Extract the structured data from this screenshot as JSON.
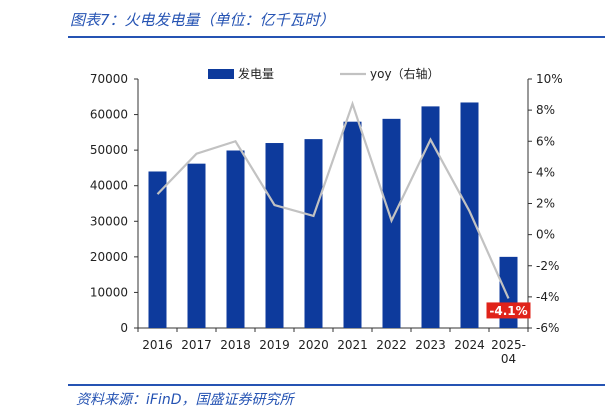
{
  "header": {
    "title": "图表7：火电发电量（单位：亿千瓦时）"
  },
  "footer": {
    "source": "资料来源：iFinD，国盛证券研究所"
  },
  "colors": {
    "bar": "#0d3a9c",
    "line": "#c2c2c2",
    "accent": "#2553b3",
    "callout": "#e0231a"
  },
  "chart_data": {
    "type": "bar",
    "categories": [
      "2016",
      "2017",
      "2018",
      "2019",
      "2020",
      "2021",
      "2022",
      "2023",
      "2024",
      "2025-04"
    ],
    "category_lines": [
      [
        "2016"
      ],
      [
        "2017"
      ],
      [
        "2018"
      ],
      [
        "2019"
      ],
      [
        "2020"
      ],
      [
        "2021"
      ],
      [
        "2022"
      ],
      [
        "2023"
      ],
      [
        "2024"
      ],
      [
        "2025-",
        "04"
      ]
    ],
    "series": [
      {
        "name": "发电量",
        "type": "bar",
        "axis": "left",
        "values": [
          44000,
          46200,
          49900,
          52000,
          53100,
          58000,
          58800,
          62300,
          63400,
          20000
        ]
      },
      {
        "name": "yoy（右轴）",
        "type": "line",
        "axis": "right",
        "values": [
          2.6,
          5.2,
          6.0,
          1.9,
          1.2,
          8.4,
          0.9,
          6.1,
          1.5,
          -4.1
        ]
      }
    ],
    "y_left": {
      "ylim": [
        0,
        70000
      ],
      "ticks": [
        0,
        10000,
        20000,
        30000,
        40000,
        50000,
        60000,
        70000
      ],
      "tick_labels": [
        "0",
        "10000",
        "20000",
        "30000",
        "40000",
        "50000",
        "60000",
        "70000"
      ]
    },
    "y_right": {
      "ylim": [
        -6,
        10
      ],
      "ticks": [
        -6,
        -4,
        -2,
        0,
        2,
        4,
        6,
        8,
        10
      ],
      "tick_labels": [
        "-6%",
        "-4%",
        "-2%",
        "0%",
        "2%",
        "4%",
        "6%",
        "8%",
        "10%"
      ]
    },
    "annotation": {
      "label": "-4.1%",
      "category": "2025-04"
    },
    "legend": {
      "placement": "top"
    },
    "grid": false
  }
}
